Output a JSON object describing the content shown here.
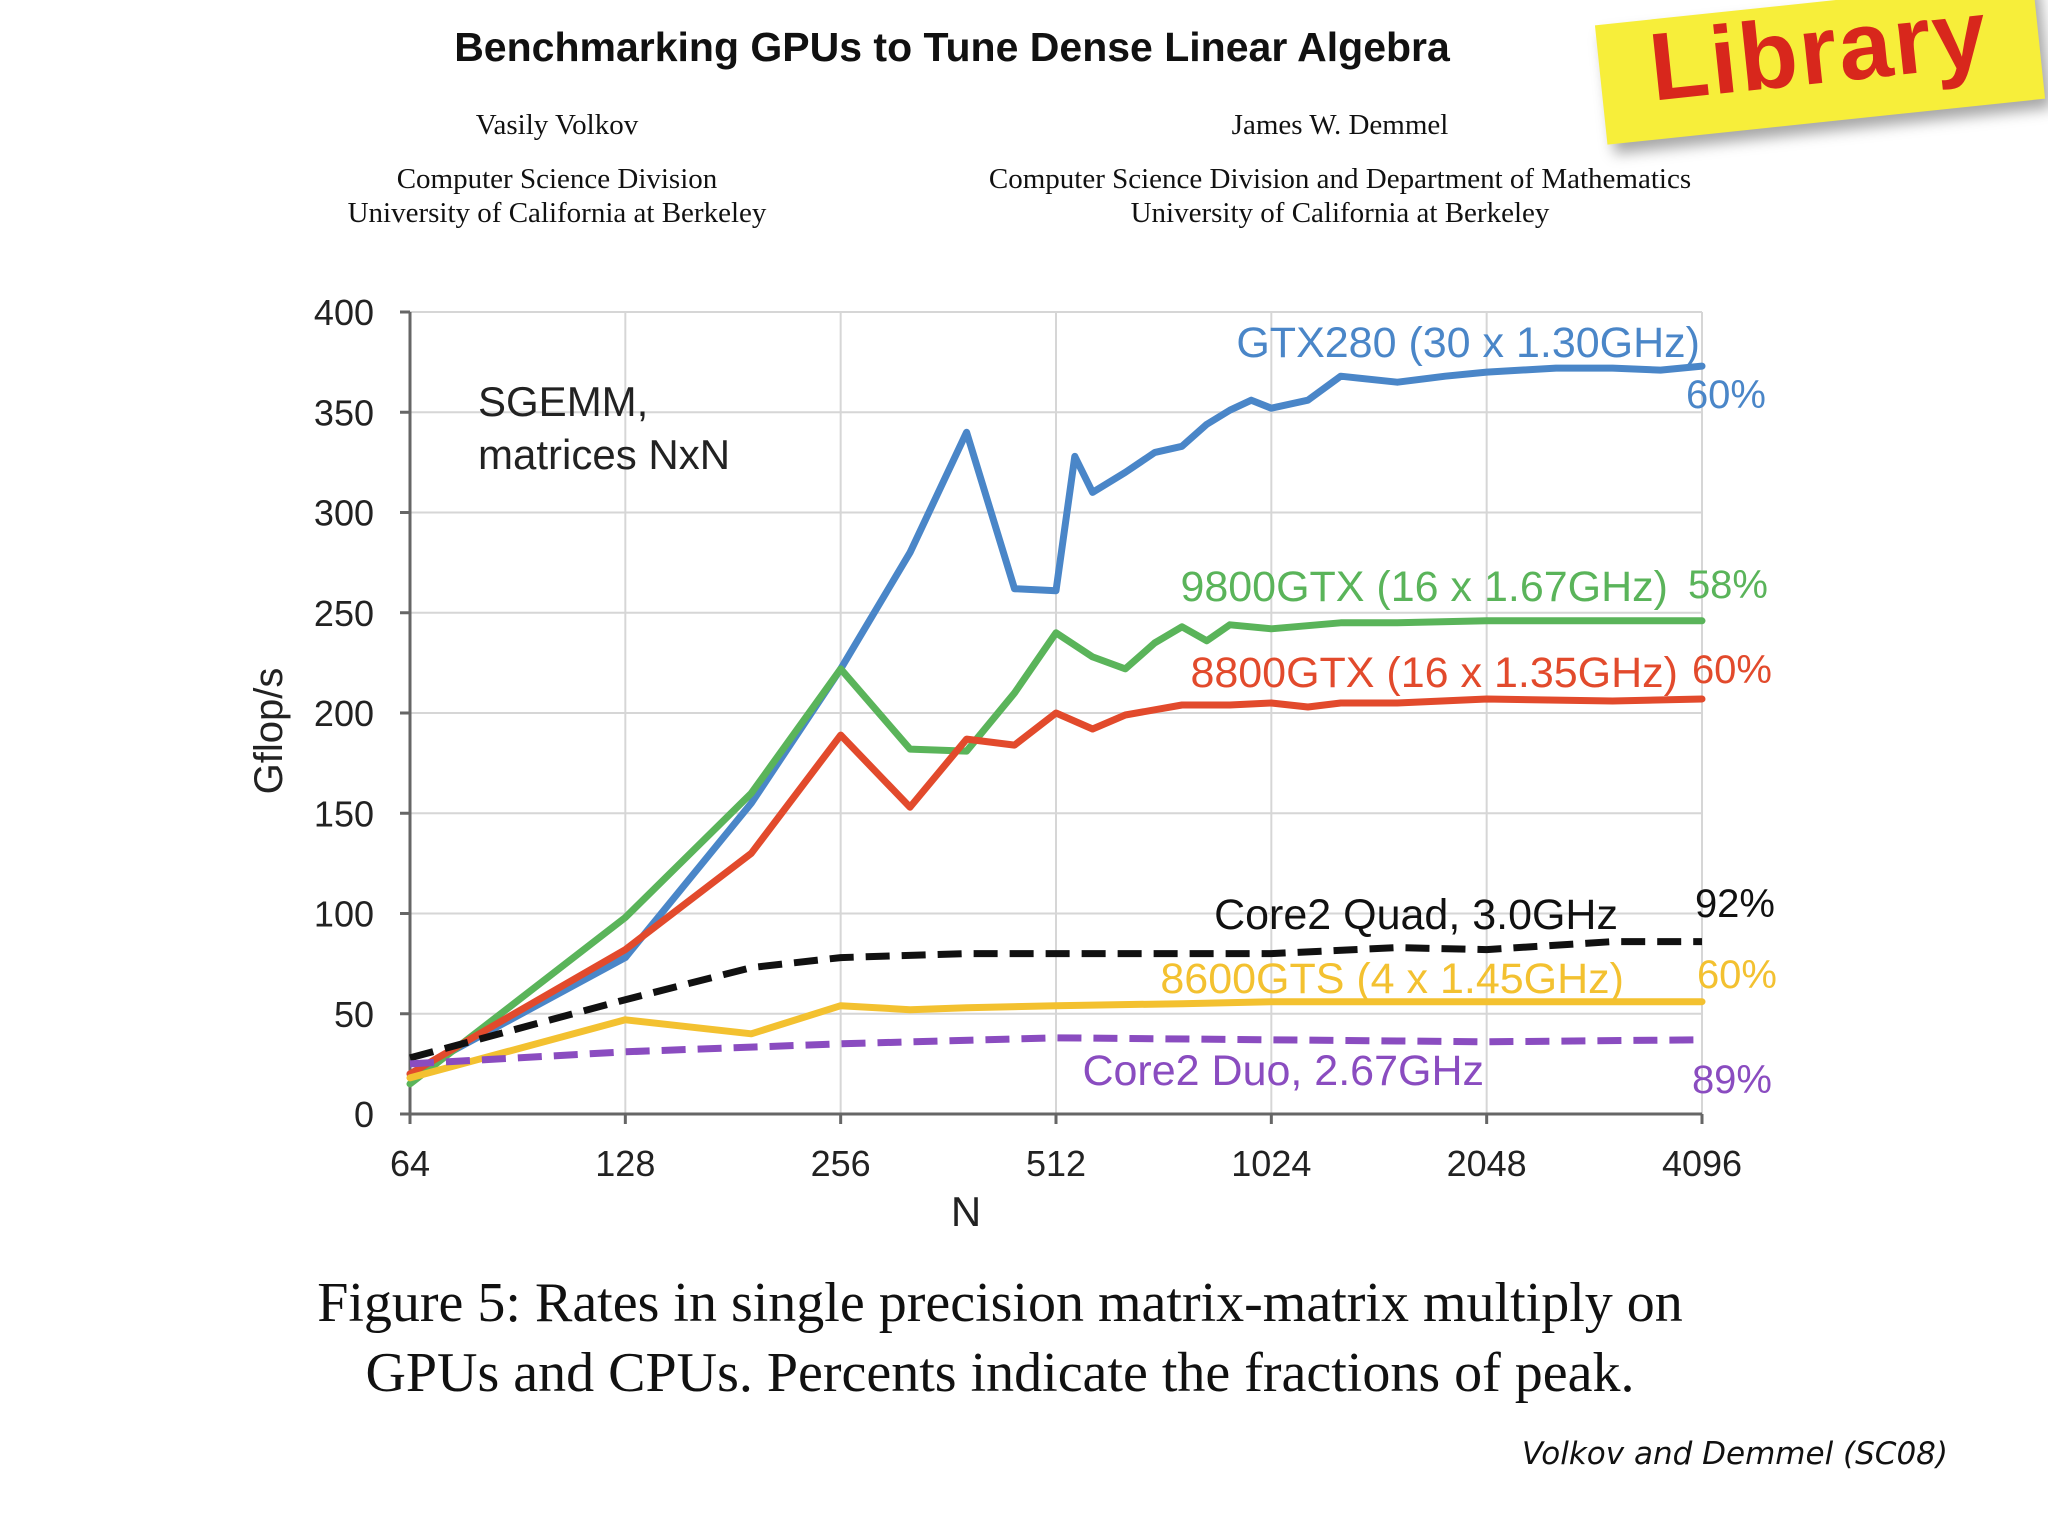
{
  "header": {
    "title": "Benchmarking GPUs to Tune Dense Linear Algebra",
    "left_author": {
      "name": "Vasily Volkov",
      "affiliation_1": "Computer Science Division",
      "affiliation_2": "University of California at Berkeley"
    },
    "right_author": {
      "name": "James W. Demmel",
      "affiliation_1": "Computer Science Division and Department of Mathematics",
      "affiliation_2": "University of California at Berkeley"
    }
  },
  "sticker": {
    "text": "Library",
    "background": "#f7ee3a",
    "color": "#d8271c"
  },
  "caption": {
    "line1": "Figure 5: Rates in single precision matrix-matrix multiply on",
    "line2": "GPUs and CPUs. Percents indicate the fractions of peak."
  },
  "credit": "Volkov and Demmel (SC08)",
  "chart_data": {
    "type": "line",
    "title": "",
    "annotation": "SGEMM,\nmatrices NxN",
    "xlabel": "N",
    "ylabel": "Gflop/s",
    "xscale": "log2",
    "xlim": [
      64,
      4096
    ],
    "ylim": [
      0,
      400
    ],
    "xticks": [
      64,
      128,
      256,
      512,
      1024,
      2048,
      4096
    ],
    "yticks": [
      0,
      50,
      100,
      150,
      200,
      250,
      300,
      350,
      400
    ],
    "grid": true,
    "legend": "inline labels at right",
    "series": [
      {
        "name": "GTX280 (30 x 1.30GHz)",
        "percent": "60%",
        "color": "#4a86c8",
        "dash": false,
        "x": [
          64,
          128,
          192,
          256,
          320,
          384,
          448,
          512,
          544,
          576,
          640,
          704,
          768,
          832,
          896,
          960,
          1024,
          1152,
          1280,
          1536,
          1792,
          2048,
          2560,
          3072,
          3584,
          4096
        ],
        "y": [
          20,
          78,
          155,
          222,
          280,
          340,
          262,
          261,
          328,
          310,
          320,
          330,
          333,
          344,
          351,
          356,
          352,
          356,
          368,
          365,
          368,
          370,
          372,
          372,
          371,
          373
        ]
      },
      {
        "name": "9800GTX (16 x 1.67GHz)",
        "percent": "58%",
        "color": "#5ab45a",
        "dash": false,
        "x": [
          64,
          128,
          192,
          256,
          320,
          384,
          448,
          512,
          576,
          640,
          704,
          768,
          832,
          896,
          1024,
          1280,
          1536,
          2048,
          3072,
          4096
        ],
        "y": [
          15,
          98,
          160,
          222,
          182,
          181,
          210,
          240,
          228,
          222,
          235,
          243,
          236,
          244,
          242,
          245,
          245,
          246,
          246,
          246
        ]
      },
      {
        "name": "8800GTX (16 x 1.35GHz)",
        "percent": "60%",
        "color": "#e24a2c",
        "dash": false,
        "x": [
          64,
          128,
          192,
          256,
          320,
          384,
          448,
          512,
          576,
          640,
          768,
          896,
          1024,
          1152,
          1280,
          1536,
          2048,
          3072,
          4096
        ],
        "y": [
          20,
          82,
          130,
          189,
          153,
          187,
          184,
          200,
          192,
          199,
          204,
          204,
          205,
          203,
          205,
          205,
          207,
          206,
          207
        ]
      },
      {
        "name": "Core2 Quad, 3.0GHz",
        "percent": "92%",
        "color": "#111111",
        "dash": true,
        "x": [
          64,
          96,
          128,
          192,
          256,
          384,
          512,
          768,
          1024,
          1536,
          2048,
          3072,
          4096
        ],
        "y": [
          28,
          45,
          57,
          73,
          78,
          80,
          80,
          80,
          80,
          83,
          82,
          86,
          86
        ]
      },
      {
        "name": "8600GTS (4 x 1.45GHz)",
        "percent": "60%",
        "color": "#f3c130",
        "dash": false,
        "x": [
          64,
          128,
          192,
          256,
          320,
          384,
          512,
          768,
          1024,
          2048,
          4096
        ],
        "y": [
          18,
          47,
          40,
          54,
          52,
          53,
          54,
          55,
          56,
          56,
          56
        ]
      },
      {
        "name": "Core2 Duo, 2.67GHz",
        "percent": "89%",
        "color": "#8a4cc0",
        "dash": true,
        "x": [
          64,
          128,
          256,
          512,
          1024,
          2048,
          4096
        ],
        "y": [
          25,
          31,
          35,
          38,
          37,
          36,
          37
        ]
      }
    ]
  }
}
